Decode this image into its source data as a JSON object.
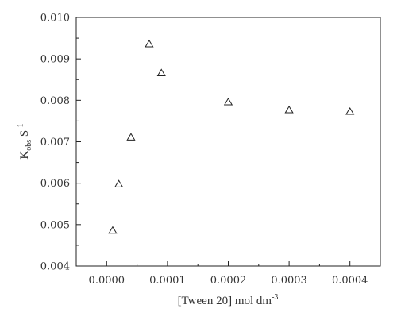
{
  "chart_data": {
    "type": "scatter",
    "title": "",
    "xlabel": "[Tween 20] mol dm",
    "xlabel_sup": "-3",
    "ylabel": {
      "main": "K",
      "sub": "obs",
      "after": " S",
      "sup": "-1"
    },
    "xlim": [
      -5e-05,
      0.00045
    ],
    "ylim": [
      0.004,
      0.01
    ],
    "xticks": [
      0.0,
      0.0001,
      0.0002,
      0.0003,
      0.0004
    ],
    "xtick_labels": [
      "0.0000",
      "0.0001",
      "0.0002",
      "0.0003",
      "0.0004"
    ],
    "yticks": [
      0.004,
      0.005,
      0.006,
      0.007,
      0.008,
      0.009,
      0.01
    ],
    "ytick_labels": [
      "0.004",
      "0.005",
      "0.006",
      "0.007",
      "0.008",
      "0.009",
      "0.010"
    ],
    "marker": "open-triangle",
    "grid": false,
    "legend": "none",
    "series": [
      {
        "x": [
          1e-05,
          2e-05,
          4e-05,
          7e-05,
          9e-05,
          0.0002,
          0.0003,
          0.0004
        ],
        "y": [
          0.00485,
          0.00597,
          0.0071,
          0.00935,
          0.00865,
          0.00795,
          0.00776,
          0.00772
        ]
      }
    ]
  }
}
